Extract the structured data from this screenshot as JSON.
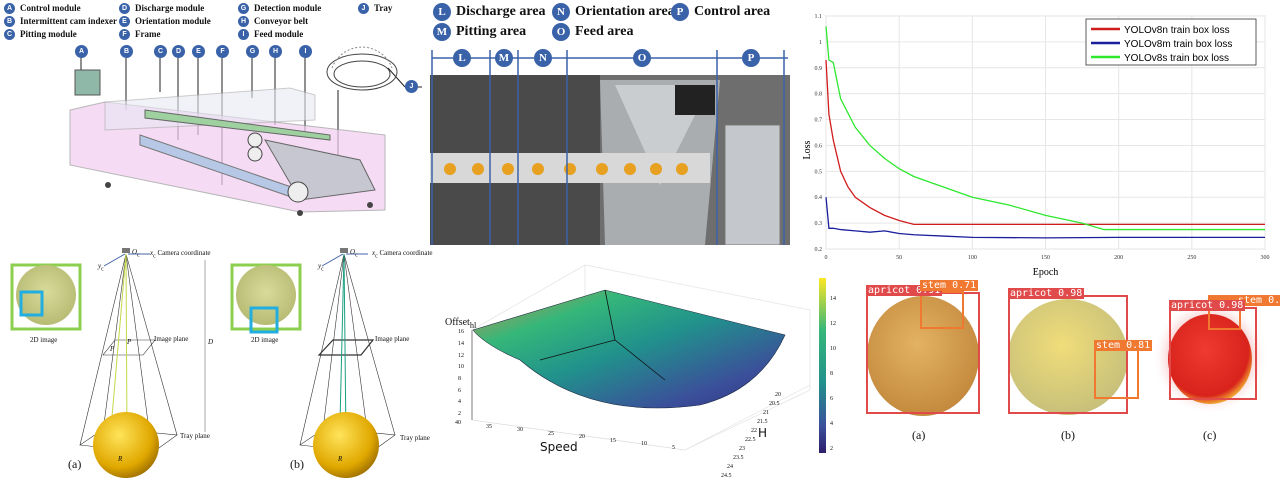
{
  "machine": {
    "legend": [
      {
        "letter": "A",
        "label": "Control module"
      },
      {
        "letter": "B",
        "label": "Intermittent cam indexer"
      },
      {
        "letter": "C",
        "label": "Pitting module"
      },
      {
        "letter": "D",
        "label": "Discharge module"
      },
      {
        "letter": "E",
        "label": "Orientation module"
      },
      {
        "letter": "F",
        "label": "Frame"
      },
      {
        "letter": "G",
        "label": "Detection module"
      },
      {
        "letter": "H",
        "label": "Conveyor belt"
      },
      {
        "letter": "I",
        "label": "Feed module"
      },
      {
        "letter": "J",
        "label": "Tray"
      }
    ]
  },
  "layout_photo": {
    "areas": [
      {
        "letter": "L",
        "label": "Discharge area"
      },
      {
        "letter": "M",
        "label": "Pitting area"
      },
      {
        "letter": "N",
        "label": "Orientation area"
      },
      {
        "letter": "O",
        "label": "Feed area"
      },
      {
        "letter": "P",
        "label": "Control area"
      }
    ]
  },
  "geometry": {
    "camera_label": "Camera coordinate",
    "origin": "O",
    "origin_sub": "c",
    "x_axis": "x",
    "y_axis": "y",
    "image_label": "2D image",
    "image_plane": "Image plane",
    "tray_plane": "Tray plane",
    "distance": "D",
    "point_c": "P",
    "point_p": "P",
    "radius": "R",
    "panel_a": "(a)",
    "panel_b": "(b)"
  },
  "surface": {
    "z_label": "Offset",
    "z_sub": "hl",
    "x_label": "Speed",
    "y_label": "H",
    "z_ticks": [
      "2",
      "4",
      "6",
      "8",
      "10",
      "12",
      "14",
      "16"
    ],
    "x_ticks": [
      "40",
      "35",
      "30",
      "25",
      "20",
      "15",
      "10",
      "5"
    ],
    "y_ticks": [
      "20",
      "20.5",
      "21",
      "21.5",
      "22",
      "22.5",
      "23",
      "23.5",
      "24",
      "24.5"
    ],
    "colorbar_ticks": [
      "14",
      "12",
      "10",
      "8",
      "6",
      "4",
      "2"
    ],
    "colors": [
      "#fde725",
      "#35b779",
      "#21918c",
      "#31688e",
      "#443983",
      "#2d1e6b"
    ]
  },
  "chart_data": {
    "type": "line",
    "title": "",
    "xlabel": "Epoch",
    "ylabel": "Loss",
    "xlim": [
      0,
      300
    ],
    "ylim": [
      0.2,
      1.1
    ],
    "x_ticks": [
      0,
      50,
      100,
      150,
      200,
      250,
      300
    ],
    "y_ticks": [
      0.2,
      0.3,
      0.4,
      0.5,
      0.6,
      0.7,
      0.8,
      0.9,
      1,
      1.1
    ],
    "grid": true,
    "legend_position": "top-right",
    "series": [
      {
        "name": "YOLOv8n train box loss",
        "color": "#d01c1c",
        "x": [
          0,
          2,
          5,
          10,
          15,
          20,
          30,
          40,
          50,
          60,
          100,
          150,
          200,
          250,
          300
        ],
        "y": [
          0.93,
          0.72,
          0.62,
          0.5,
          0.44,
          0.4,
          0.36,
          0.33,
          0.31,
          0.295,
          0.295,
          0.295,
          0.295,
          0.295,
          0.295
        ]
      },
      {
        "name": "YOLOv8m train box loss",
        "color": "#1a1f9c",
        "x": [
          0,
          2,
          5,
          10,
          20,
          30,
          40,
          50,
          60,
          80,
          100,
          150,
          200,
          250,
          300
        ],
        "y": [
          0.4,
          0.28,
          0.28,
          0.275,
          0.27,
          0.265,
          0.27,
          0.26,
          0.255,
          0.25,
          0.245,
          0.243,
          0.245,
          0.245,
          0.245
        ]
      },
      {
        "name": "YOLOv8s train box loss",
        "color": "#2ee82e",
        "x": [
          0,
          2,
          5,
          10,
          20,
          30,
          40,
          50,
          60,
          80,
          100,
          125,
          150,
          175,
          190,
          200,
          250,
          300
        ],
        "y": [
          1.06,
          0.93,
          0.92,
          0.78,
          0.67,
          0.6,
          0.55,
          0.51,
          0.48,
          0.44,
          0.4,
          0.37,
          0.33,
          0.3,
          0.275,
          0.275,
          0.275,
          0.275
        ]
      }
    ]
  },
  "detection": {
    "panels": [
      {
        "caption": "(a)",
        "fruit_label": "apricot 0.91",
        "stem_label": "stem 0.71"
      },
      {
        "caption": "(b)",
        "fruit_label": "apricot 0.98",
        "stem_label": "stem 0.81"
      },
      {
        "caption": "(c)",
        "fruit_label": "apricot 0.98",
        "stem_label": "stem 0.76"
      }
    ]
  }
}
